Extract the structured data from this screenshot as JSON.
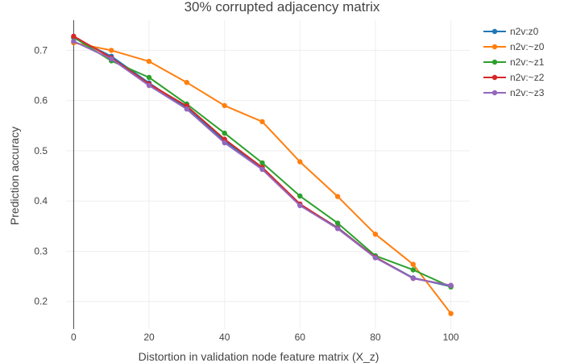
{
  "chart_data": {
    "type": "line",
    "title": "30% corrupted adjacency matrix",
    "xlabel": "Distortion in validation node feature matrix (X_z)",
    "ylabel": "Prediction accuracy",
    "xlim": [
      -2,
      105
    ],
    "ylim": [
      0.145,
      0.76
    ],
    "xticks": [
      0,
      20,
      40,
      60,
      80,
      100
    ],
    "yticks": [
      0.2,
      0.3,
      0.4,
      0.5,
      0.6,
      0.7
    ],
    "x": [
      0,
      10,
      20,
      30,
      40,
      50,
      60,
      70,
      80,
      90,
      100
    ],
    "series": [
      {
        "name": "n2v:z0",
        "color": "#1f77b4",
        "values": [
          0.725,
          0.688,
          0.635,
          0.585,
          0.52,
          0.465,
          0.393,
          0.347,
          0.288,
          0.247,
          0.23
        ]
      },
      {
        "name": "n2v:~z0",
        "color": "#ff7f0e",
        "values": [
          0.715,
          0.7,
          0.678,
          0.636,
          0.59,
          0.558,
          0.478,
          0.409,
          0.334,
          0.274,
          0.176
        ]
      },
      {
        "name": "n2v:~z1",
        "color": "#2ca02c",
        "values": [
          0.726,
          0.679,
          0.646,
          0.593,
          0.535,
          0.476,
          0.41,
          0.356,
          0.291,
          0.263,
          0.229
        ]
      },
      {
        "name": "n2v:~z2",
        "color": "#d62728",
        "values": [
          0.728,
          0.685,
          0.633,
          0.589,
          0.523,
          0.467,
          0.394,
          0.346,
          0.288,
          0.246,
          0.232
        ]
      },
      {
        "name": "n2v:~z3",
        "color": "#9467bd",
        "values": [
          0.718,
          0.683,
          0.63,
          0.583,
          0.516,
          0.463,
          0.391,
          0.345,
          0.287,
          0.246,
          0.232
        ]
      }
    ],
    "grid": true,
    "legend_position": "top-right"
  }
}
